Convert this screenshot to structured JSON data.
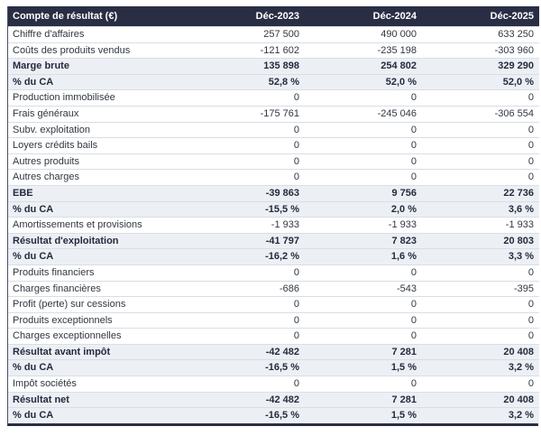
{
  "table": {
    "title": "Compte de résultat (€)",
    "columns": [
      "Déc-2023",
      "Déc-2024",
      "Déc-2025"
    ],
    "rows": [
      {
        "label": "Chiffre d'affaires",
        "values": [
          "257 500",
          "490 000",
          "633 250"
        ],
        "emphasis": false
      },
      {
        "label": "Coûts des produits vendus",
        "values": [
          "-121 602",
          "-235 198",
          "-303 960"
        ],
        "emphasis": false
      },
      {
        "label": "Marge brute",
        "values": [
          "135 898",
          "254 802",
          "329 290"
        ],
        "emphasis": true
      },
      {
        "label": "% du CA",
        "values": [
          "52,8 %",
          "52,0 %",
          "52,0 %"
        ],
        "emphasis": true
      },
      {
        "label": "Production immobilisée",
        "values": [
          "0",
          "0",
          "0"
        ],
        "emphasis": false
      },
      {
        "label": "Frais généraux",
        "values": [
          "-175 761",
          "-245 046",
          "-306 554"
        ],
        "emphasis": false
      },
      {
        "label": "Subv. exploitation",
        "values": [
          "0",
          "0",
          "0"
        ],
        "emphasis": false
      },
      {
        "label": "Loyers crédits bails",
        "values": [
          "0",
          "0",
          "0"
        ],
        "emphasis": false
      },
      {
        "label": "Autres produits",
        "values": [
          "0",
          "0",
          "0"
        ],
        "emphasis": false
      },
      {
        "label": "Autres charges",
        "values": [
          "0",
          "0",
          "0"
        ],
        "emphasis": false
      },
      {
        "label": "EBE",
        "values": [
          "-39 863",
          "9 756",
          "22 736"
        ],
        "emphasis": true
      },
      {
        "label": "% du CA",
        "values": [
          "-15,5 %",
          "2,0 %",
          "3,6 %"
        ],
        "emphasis": true
      },
      {
        "label": "Amortissements et provisions",
        "values": [
          "-1 933",
          "-1 933",
          "-1 933"
        ],
        "emphasis": false
      },
      {
        "label": "Résultat d'exploitation",
        "values": [
          "-41 797",
          "7 823",
          "20 803"
        ],
        "emphasis": true
      },
      {
        "label": "% du CA",
        "values": [
          "-16,2 %",
          "1,6 %",
          "3,3 %"
        ],
        "emphasis": true
      },
      {
        "label": "Produits financiers",
        "values": [
          "0",
          "0",
          "0"
        ],
        "emphasis": false
      },
      {
        "label": "Charges financières",
        "values": [
          "-686",
          "-543",
          "-395"
        ],
        "emphasis": false
      },
      {
        "label": "Profit (perte) sur cessions",
        "values": [
          "0",
          "0",
          "0"
        ],
        "emphasis": false
      },
      {
        "label": "Produits exceptionnels",
        "values": [
          "0",
          "0",
          "0"
        ],
        "emphasis": false
      },
      {
        "label": "Charges exceptionnelles",
        "values": [
          "0",
          "0",
          "0"
        ],
        "emphasis": false
      },
      {
        "label": "Résultat avant impôt",
        "values": [
          "-42 482",
          "7 281",
          "20 408"
        ],
        "emphasis": true
      },
      {
        "label": "% du CA",
        "values": [
          "-16,5 %",
          "1,5 %",
          "3,2 %"
        ],
        "emphasis": true
      },
      {
        "label": "Impôt sociétés",
        "values": [
          "0",
          "0",
          "0"
        ],
        "emphasis": false
      },
      {
        "label": "Résultat net",
        "values": [
          "-42 482",
          "7 281",
          "20 408"
        ],
        "emphasis": true
      },
      {
        "label": "% du CA",
        "values": [
          "-16,5 %",
          "1,5 %",
          "3,2 %"
        ],
        "emphasis": true
      }
    ]
  },
  "colors": {
    "header_bg": "#2a2e45",
    "header_text": "#ffffff",
    "highlight_bg": "#ecf0f5",
    "row_border": "#d9dee5",
    "text": "#303642",
    "emphasis_text": "#252a3d",
    "outer_border": "#2a2e45",
    "side_border": "#4a4f63"
  }
}
